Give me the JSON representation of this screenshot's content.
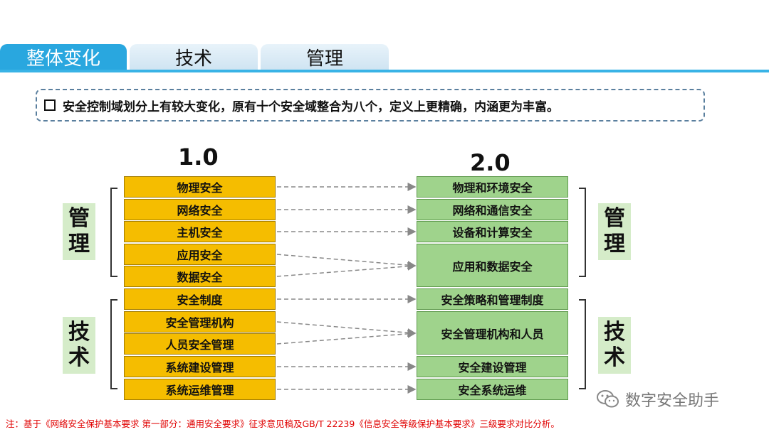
{
  "tabs": [
    {
      "label": "整体变化"
    },
    {
      "label": "技术"
    },
    {
      "label": "管理"
    }
  ],
  "note": "安全控制域划分上有较大变化，原有十个安全域整合为八个，定义上更精确，内涵更为丰富。",
  "left": {
    "version": "1.0",
    "items": [
      "物理安全",
      "网络安全",
      "主机安全",
      "应用安全",
      "数据安全",
      "安全制度",
      "安全管理机构",
      "人员安全管理",
      "系统建设管理",
      "系统运维管理"
    ]
  },
  "right": {
    "version": "2.0",
    "items": [
      "物理和环境安全",
      "网络和通信安全",
      "设备和计算安全",
      "应用和数据安全",
      "安全策略和管理制度",
      "安全管理机构和人员",
      "安全建设管理",
      "安全系统运维"
    ]
  },
  "side_labels": {
    "left_top": [
      "管",
      "理"
    ],
    "left_bottom": [
      "技",
      "术"
    ],
    "right_top": [
      "管",
      "理"
    ],
    "right_bottom": [
      "技",
      "术"
    ]
  },
  "footnote": "注：基于《网络安全保护基本要求 第一部分：通用安全要求》征求意见稿及GB/T 22239《信息安全等级保护基本要求》三级要求对比分析。",
  "watermark": "数字安全助手"
}
